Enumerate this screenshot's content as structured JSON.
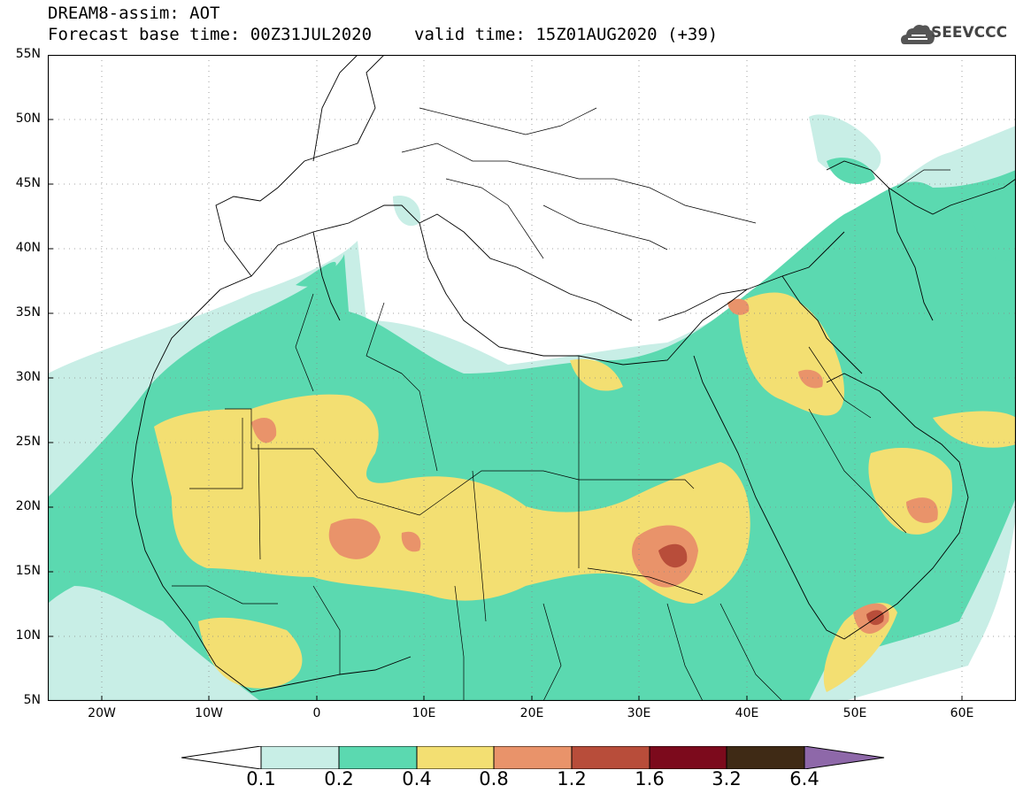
{
  "header": {
    "title": "DREAM8-assim: AOT",
    "base_time": "Forecast base time: 00Z31JUL2020",
    "valid_time": "valid time: 15Z01AUG2020 (+39)",
    "logo_text": "SEEVCCC"
  },
  "map": {
    "lat_labels": [
      "55N",
      "50N",
      "45N",
      "40N",
      "35N",
      "30N",
      "25N",
      "20N",
      "15N",
      "10N",
      "5N"
    ],
    "lon_labels": [
      "20W",
      "10W",
      "0",
      "10E",
      "20E",
      "30E",
      "40E",
      "50E",
      "60E"
    ],
    "lat_range": [
      5,
      55
    ],
    "lon_range": [
      -25,
      65
    ]
  },
  "colorbar": {
    "labels": [
      "0.1",
      "0.2",
      "0.4",
      "0.8",
      "1.2",
      "1.6",
      "3.2",
      "6.4"
    ],
    "colors": [
      "#ffffff",
      "#c8eee6",
      "#5bd9b0",
      "#f3df72",
      "#e9936a",
      "#b84d3a",
      "#7c0a1c",
      "#3f2a15",
      "#8e68a9"
    ]
  },
  "colors": {
    "c1": "#c8eee6",
    "c2": "#5bd9b0",
    "c3": "#f3df72",
    "c4": "#e9936a",
    "c5": "#b84d3a"
  }
}
